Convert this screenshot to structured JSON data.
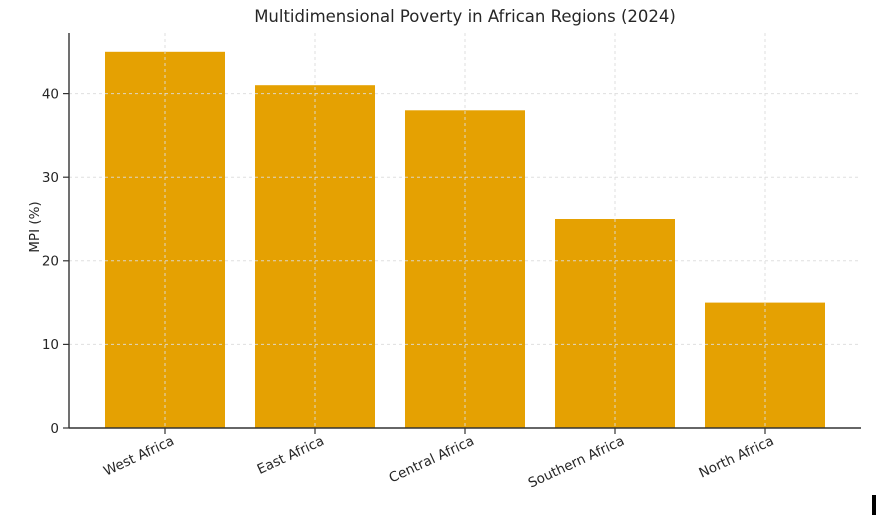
{
  "page": {
    "background_color": "#ffffff",
    "cursor_artifact_color": "#000000"
  },
  "chart_data": {
    "type": "bar",
    "title": "Multidimensional Poverty in African Regions (2024)",
    "categories": [
      "West Africa",
      "East Africa",
      "Central Africa",
      "Southern Africa",
      "North Africa"
    ],
    "values": [
      45,
      41,
      38,
      25,
      15
    ],
    "xlabel": "",
    "ylabel": "MPI (%)",
    "ylim": [
      0,
      47.25
    ],
    "yticks": [
      0,
      10,
      20,
      30,
      40
    ],
    "bar_color": "#e5a102",
    "grid": true,
    "grid_style": "dashed",
    "grid_color": "#dcdcdc",
    "axis_color": "#333333",
    "text_color": "#262626",
    "legend": "none",
    "xtick_rotation_deg": 25
  }
}
